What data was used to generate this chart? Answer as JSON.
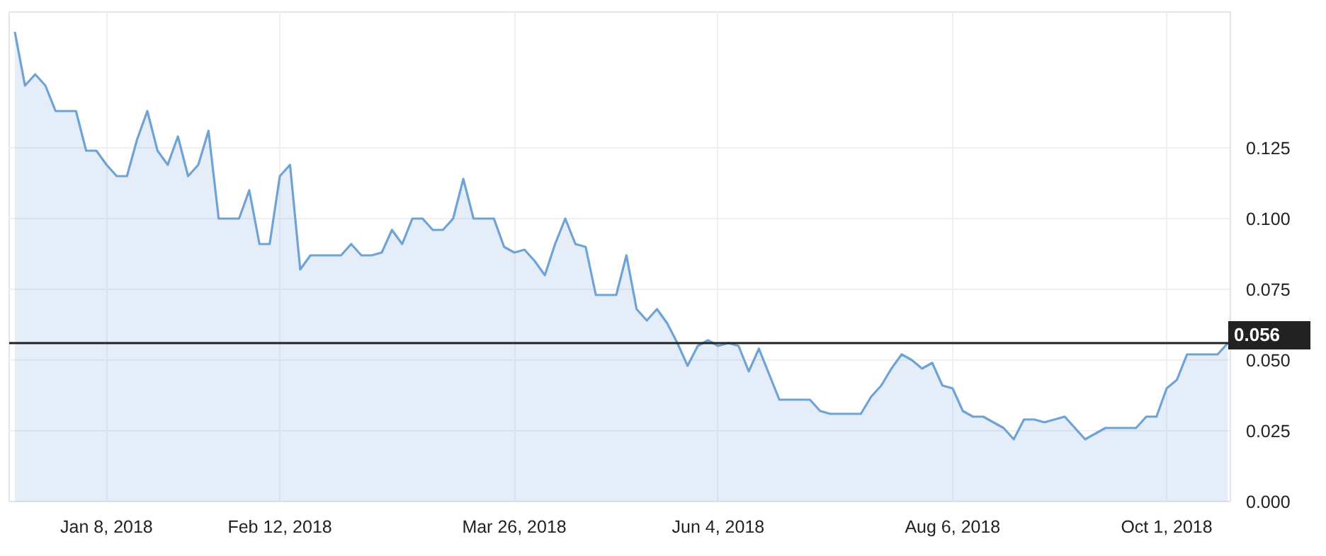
{
  "chart_data": {
    "type": "area",
    "categories": [
      null,
      null,
      null,
      null,
      null,
      null,
      null,
      null,
      null,
      "Jan 8, 2018",
      null,
      null,
      null,
      null,
      null,
      null,
      null,
      null,
      null,
      null,
      null,
      null,
      null,
      null,
      null,
      null,
      "Feb 12, 2018",
      null,
      null,
      null,
      null,
      null,
      null,
      null,
      null,
      null,
      null,
      null,
      null,
      null,
      null,
      null,
      null,
      null,
      null,
      null,
      null,
      null,
      null,
      "Mar 26, 2018",
      null,
      null,
      null,
      null,
      null,
      null,
      null,
      null,
      null,
      null,
      null,
      null,
      null,
      null,
      null,
      null,
      null,
      null,
      null,
      "Jun 4, 2018",
      null,
      null,
      null,
      null,
      null,
      null,
      null,
      null,
      null,
      null,
      null,
      null,
      null,
      null,
      null,
      null,
      null,
      null,
      null,
      null,
      null,
      null,
      "Aug 6, 2018",
      null,
      null,
      null,
      null,
      null,
      null,
      null,
      null,
      null,
      null,
      null,
      null,
      null,
      null,
      null,
      null,
      null,
      null,
      null,
      null,
      "Oct 1, 2018",
      null,
      null,
      null,
      null,
      null,
      null
    ],
    "series": [
      {
        "color": "#6fa3d6",
        "values": [
          0.166,
          0.147,
          0.151,
          0.147,
          0.138,
          0.138,
          0.138,
          0.124,
          0.124,
          0.119,
          0.115,
          0.115,
          0.128,
          0.138,
          0.124,
          0.119,
          0.129,
          0.115,
          0.119,
          0.131,
          0.1,
          0.1,
          0.1,
          0.11,
          0.091,
          0.091,
          0.115,
          0.119,
          0.082,
          0.087,
          0.087,
          0.087,
          0.087,
          0.091,
          0.087,
          0.087,
          0.088,
          0.096,
          0.091,
          0.1,
          0.1,
          0.096,
          0.096,
          0.1,
          0.114,
          0.1,
          0.1,
          0.1,
          0.09,
          0.088,
          0.089,
          0.085,
          0.08,
          0.091,
          0.1,
          0.091,
          0.09,
          0.073,
          0.073,
          0.073,
          0.087,
          0.068,
          0.064,
          0.068,
          0.063,
          0.056,
          0.048,
          0.055,
          0.057,
          0.055,
          0.056,
          0.055,
          0.046,
          0.054,
          0.045,
          0.036,
          0.036,
          0.036,
          0.036,
          0.032,
          0.031,
          0.031,
          0.031,
          0.031,
          0.037,
          0.041,
          0.047,
          0.052,
          0.05,
          0.047,
          0.049,
          0.041,
          0.04,
          0.032,
          0.03,
          0.03,
          0.028,
          0.026,
          0.022,
          0.029,
          0.029,
          0.028,
          0.029,
          0.03,
          0.026,
          0.022,
          0.024,
          0.026,
          0.026,
          0.026,
          0.026,
          0.03,
          0.03,
          0.04,
          0.043,
          0.052,
          0.052,
          0.052,
          0.052,
          0.056
        ]
      }
    ],
    "ylim": [
      0,
      0.173
    ],
    "yticks": [
      {
        "value": 0,
        "label": "0.000"
      },
      {
        "value": 0.025,
        "label": "0.025"
      },
      {
        "value": 0.05,
        "label": "0.050"
      },
      {
        "value": 0.075,
        "label": "0.075"
      },
      {
        "value": 0.1,
        "label": "0.100"
      },
      {
        "value": 0.125,
        "label": "0.125"
      }
    ],
    "ref_lines": [
      {
        "axis": "y",
        "value": 0.056,
        "label": "0.056",
        "color": "#222222"
      }
    ],
    "grid": true
  }
}
